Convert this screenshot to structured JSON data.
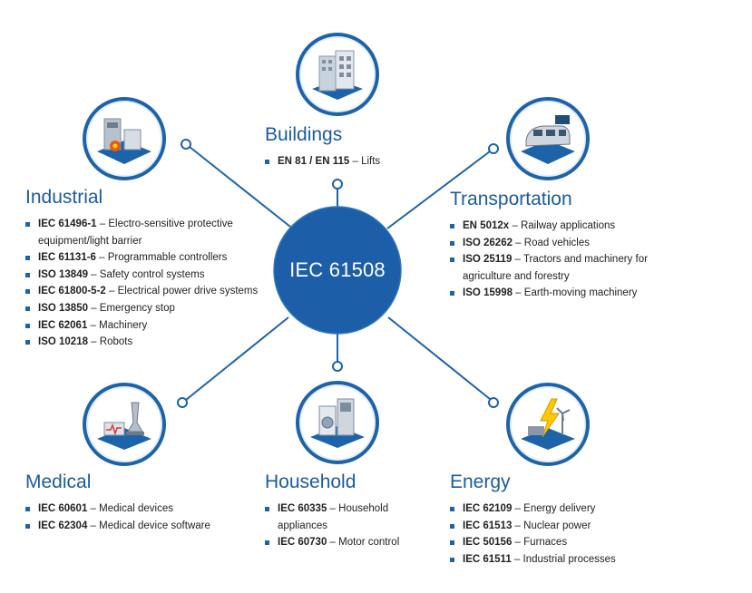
{
  "center": {
    "label": "IEC 61508"
  },
  "colors": {
    "accent": "#1d63a9",
    "center_fill": "#1c5ea8",
    "title": "#1c5b9e"
  },
  "sections": {
    "buildings": {
      "title": "Buildings",
      "icon": "buildings-icon",
      "items": [
        {
          "std": "EN 81 / EN 115",
          "desc": " – Lifts"
        }
      ]
    },
    "industrial": {
      "title": "Industrial",
      "icon": "industrial-icon",
      "items": [
        {
          "std": "IEC 61496-1",
          "desc": " – Electro-sensitive protective",
          "cont": "equipment/light barrier"
        },
        {
          "std": "IEC 61131-6",
          "desc": " – Programmable controllers"
        },
        {
          "std": "ISO 13849",
          "desc": " – Safety control systems"
        },
        {
          "std": "IEC 61800-5-2",
          "desc": " – Electrical power drive systems"
        },
        {
          "std": "ISO 13850",
          "desc": " – Emergency stop"
        },
        {
          "std": "IEC 62061",
          "desc": " – Machinery"
        },
        {
          "std": "ISO 10218",
          "desc": " – Robots"
        }
      ]
    },
    "transportation": {
      "title": "Transportation",
      "icon": "train-icon",
      "items": [
        {
          "std": "EN 5012x",
          "desc": " – Railway applications"
        },
        {
          "std": "ISO 26262",
          "desc": " – Road vehicles"
        },
        {
          "std": "ISO 25119",
          "desc": " – Tractors and machinery for",
          "cont": "agriculture and forestry"
        },
        {
          "std": "ISO 15998",
          "desc": " – Earth-moving machinery"
        }
      ]
    },
    "medical": {
      "title": "Medical",
      "icon": "microscope-icon",
      "items": [
        {
          "std": "IEC 60601",
          "desc": " – Medical devices"
        },
        {
          "std": "IEC 62304",
          "desc": " – Medical device software"
        }
      ]
    },
    "household": {
      "title": "Household",
      "icon": "household-appliance-icon",
      "items": [
        {
          "std": "IEC 60335",
          "desc": " – Household",
          "cont": "appliances"
        },
        {
          "std": "IEC 60730",
          "desc": " – Motor control"
        }
      ]
    },
    "energy": {
      "title": "Energy",
      "icon": "energy-icon",
      "items": [
        {
          "std": "IEC 62109",
          "desc": " – Energy delivery"
        },
        {
          "std": "IEC 61513",
          "desc": " – Nuclear power"
        },
        {
          "std": "IEC 50156",
          "desc": " – Furnaces"
        },
        {
          "std": "IEC 61511",
          "desc": " – Industrial processes"
        }
      ]
    }
  }
}
